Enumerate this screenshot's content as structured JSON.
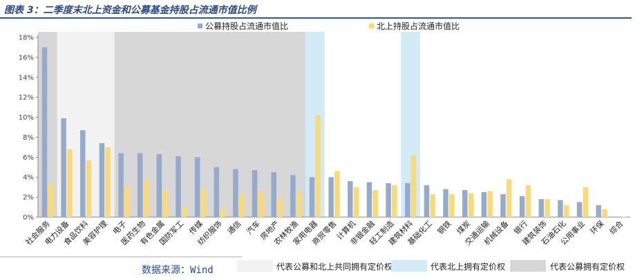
{
  "figure": {
    "title": "图表 3：二季度末北上资金和公募基金持股占流通市值比例",
    "source": "数据来源：Wind"
  },
  "colors": {
    "fund": "#96abcc",
    "north": "#fada78",
    "zone_both": "#f2f2f2",
    "zone_north": "#d3ebf7",
    "zone_fund": "#d7d7d7",
    "axis": "#888888"
  },
  "zone_legend": [
    {
      "key": "both",
      "label": "代表公募和北上共同拥有定价权"
    },
    {
      "key": "north",
      "label": "代表北上拥有定价权"
    },
    {
      "key": "fund",
      "label": "代表公募拥有定价权"
    }
  ],
  "chart_data": {
    "type": "bar",
    "title": "",
    "xlabel": "",
    "ylabel": "",
    "ylim": [
      0,
      18
    ],
    "yticks": [
      "0%",
      "2%",
      "4%",
      "6%",
      "8%",
      "10%",
      "12%",
      "14%",
      "16%",
      "18%"
    ],
    "legend_position": "top",
    "categories": [
      "社会服务",
      "电力设备",
      "食品饮料",
      "美容护理",
      "电子",
      "医药生物",
      "有色金属",
      "国防军工",
      "传媒",
      "纺织服饰",
      "通信",
      "汽车",
      "房地产",
      "农林牧渔",
      "家用电器",
      "商贸零售",
      "计算机",
      "非银金融",
      "轻工制造",
      "建筑材料",
      "基础化工",
      "钢铁",
      "煤炭",
      "交通运输",
      "机械设备",
      "银行",
      "建筑装饰",
      "石油石化",
      "公用事业",
      "环保",
      "综合"
    ],
    "series": [
      {
        "name": "公募持股占流通市值比",
        "values": [
          17.0,
          9.9,
          8.7,
          7.4,
          6.4,
          6.4,
          6.3,
          6.1,
          6.0,
          5.0,
          4.8,
          4.7,
          4.5,
          4.2,
          4.0,
          4.0,
          3.6,
          3.5,
          3.4,
          3.4,
          3.2,
          2.8,
          2.7,
          2.5,
          2.3,
          2.1,
          1.8,
          1.7,
          1.5,
          1.2,
          0.05
        ]
      },
      {
        "name": "北上持股占流通市值比",
        "values": [
          3.3,
          6.8,
          5.7,
          7.0,
          3.1,
          3.7,
          2.7,
          1.0,
          2.8,
          0.7,
          2.2,
          2.5,
          1.9,
          2.5,
          10.2,
          4.6,
          3.0,
          2.7,
          3.2,
          6.2,
          2.3,
          2.3,
          2.4,
          2.6,
          3.8,
          3.2,
          1.8,
          1.2,
          3.0,
          0.8,
          0.05
        ]
      }
    ],
    "zones": [
      {
        "type": "both",
        "from": 1,
        "to": 3
      },
      {
        "type": "fund",
        "from": 4,
        "to": 13
      },
      {
        "type": "fund",
        "from": 0,
        "to": 0
      },
      {
        "type": "north",
        "from": 14,
        "to": 14
      },
      {
        "type": "north",
        "from": 19,
        "to": 19
      }
    ]
  }
}
